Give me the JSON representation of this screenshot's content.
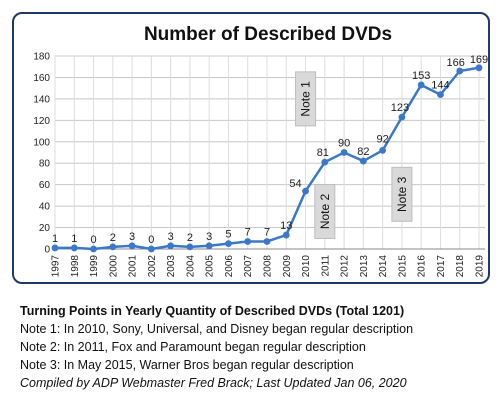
{
  "chart_data": {
    "type": "line",
    "title": "Number of Described DVDs",
    "x": [
      "1997",
      "1998",
      "1999",
      "2000",
      "2001",
      "2002",
      "2003",
      "2004",
      "2005",
      "2006",
      "2007",
      "2008",
      "2009",
      "2010",
      "2011",
      "2012",
      "2013",
      "2014",
      "2015",
      "2016",
      "2017",
      "2018",
      "2019"
    ],
    "values": [
      1,
      1,
      0,
      2,
      3,
      0,
      3,
      2,
      3,
      5,
      7,
      7,
      13,
      54,
      81,
      90,
      82,
      92,
      123,
      153,
      144,
      166,
      169
    ],
    "ylim": [
      0,
      180
    ],
    "yticks": [
      "0",
      "20",
      "40",
      "60",
      "80",
      "100",
      "120",
      "140",
      "160",
      "180"
    ],
    "grid": true,
    "line_color": "#3c78c8",
    "annotations": [
      {
        "text": "Note 1",
        "x": "2010",
        "y": 140
      },
      {
        "text": "Note 2",
        "x": "2011",
        "y": 35
      },
      {
        "text": "Note 3",
        "x": "2015",
        "y": 51
      }
    ]
  },
  "notes": {
    "heading": "Turning Points in Yearly Quantity of Described DVDs (Total 1201)",
    "note1": "Note 1:  In 2010, Sony, Universal, and Disney began regular description",
    "note2": "Note 2:  In 2011, Fox and Paramount began regular description",
    "note3": "Note 3:  In May 2015, Warner Bros began regular description",
    "compiled": "Compiled by ADP Webmaster Fred Brack; Last Updated Jan 06, 2020"
  }
}
